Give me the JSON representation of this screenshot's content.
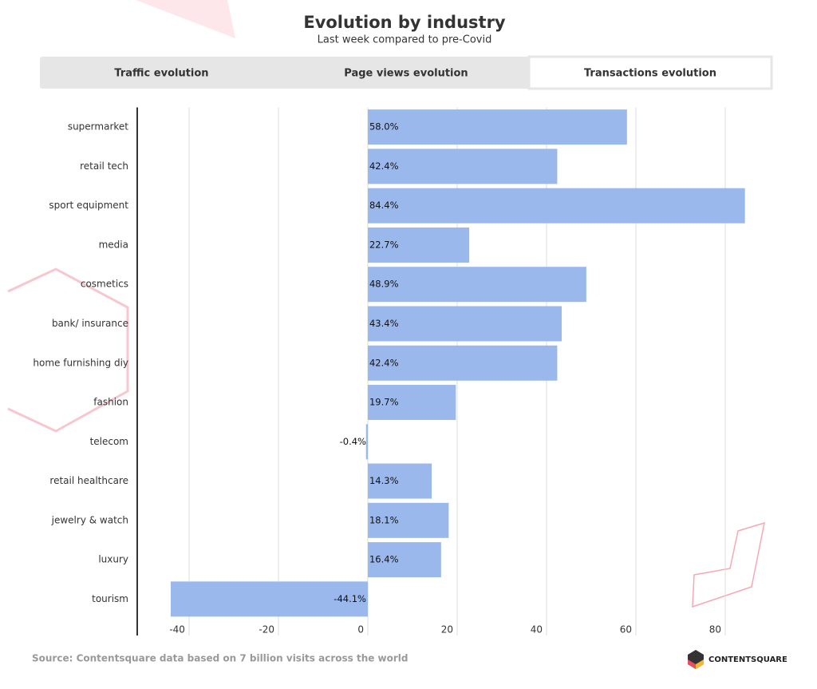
{
  "title": "Evolution by industry",
  "subtitle": "Last week compared to pre-Covid",
  "tabs": [
    {
      "label": "Traffic evolution",
      "active": false
    },
    {
      "label": "Page views evolution",
      "active": false
    },
    {
      "label": "Transactions evolution",
      "active": true
    }
  ],
  "chart_data": {
    "type": "bar",
    "orientation": "horizontal",
    "categories": [
      "supermarket",
      "retail tech",
      "sport equipment",
      "media",
      "cosmetics",
      "bank/ insurance",
      "home furnishing diy",
      "fashion",
      "telecom",
      "retail healthcare",
      "jewelry & watch",
      "luxury",
      "tourism"
    ],
    "values": [
      58.0,
      42.4,
      84.4,
      22.7,
      48.9,
      43.4,
      42.4,
      19.7,
      -0.4,
      14.3,
      18.1,
      16.4,
      -44.1
    ],
    "value_labels": [
      "58.0%",
      "42.4%",
      "84.4%",
      "22.7%",
      "48.9%",
      "43.4%",
      "42.4%",
      "19.7%",
      "-0.4%",
      "14.3%",
      "18.1%",
      "16.4%",
      "-44.1%"
    ],
    "color": "#9ab8ec",
    "xlim": [
      -51.6,
      89.1
    ],
    "xticks": [
      -40,
      -20,
      0,
      20,
      40,
      60,
      80
    ],
    "grid": true
  },
  "source": "Source: Contentsquare data based on 7 billion visits across the world",
  "brand": "CONTENTSQUARE"
}
